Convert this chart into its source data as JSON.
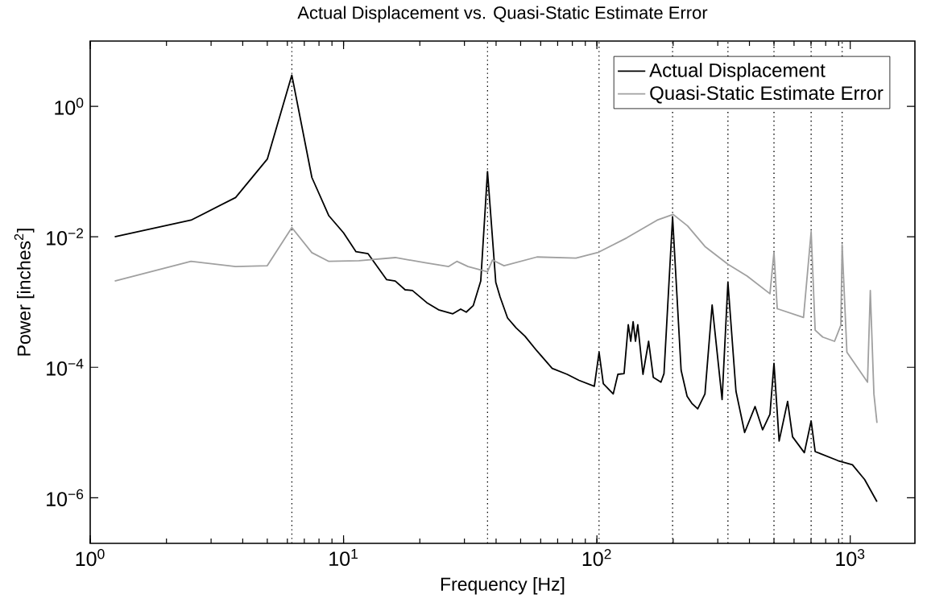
{
  "chart_data": {
    "type": "line",
    "title": "Actual Displacement vs. Quasi-Static Estimate Error",
    "xlabel": "Frequency [Hz]",
    "ylabel": "Power [inches$^{2}$]",
    "log": "xy",
    "legend": "top right",
    "marker": "none",
    "line_style": "solid",
    "xlim": [
      1,
      1800
    ],
    "ylim": [
      2e-07,
      10
    ],
    "xticks": [
      {
        "value": 1,
        "label": "10$^{0}$"
      },
      {
        "value": 10,
        "label": "10$^{1}$"
      },
      {
        "value": 100,
        "label": "10$^{2}$"
      },
      {
        "value": 1000,
        "label": "10$^{3}$"
      }
    ],
    "yticks": [
      {
        "value": 1e-06,
        "label": "10$^{−6}$"
      },
      {
        "value": 0.0001,
        "label": "10$^{−4}$"
      },
      {
        "value": 0.01,
        "label": "10$^{−2}$"
      },
      {
        "value": 1,
        "label": "10$^{0}$"
      }
    ],
    "ref_lines": [
      {
        "axis": "x",
        "value": 6.25,
        "color": "#000000",
        "line_style": "dotted"
      },
      {
        "axis": "x",
        "value": 37,
        "color": "#000000",
        "line_style": "dotted"
      },
      {
        "axis": "x",
        "value": 102,
        "color": "#000000",
        "line_style": "dotted"
      },
      {
        "axis": "x",
        "value": 199,
        "color": "#000000",
        "line_style": "dotted"
      },
      {
        "axis": "x",
        "value": 329,
        "color": "#000000",
        "line_style": "dotted"
      },
      {
        "axis": "x",
        "value": 500,
        "color": "#000000",
        "line_style": "dotted"
      },
      {
        "axis": "x",
        "value": 701,
        "color": "#000000",
        "line_style": "dotted"
      },
      {
        "axis": "x",
        "value": 929,
        "color": "#000000",
        "line_style": "dotted"
      }
    ],
    "series": [
      {
        "name": "Actual Displacement",
        "color": "#000000",
        "x": [
          1.25,
          2.5,
          3.75,
          5,
          6.25,
          7.5,
          8.75,
          10,
          11.2,
          12.5,
          14.8,
          16,
          17.5,
          18.7,
          21.3,
          23.7,
          27,
          29,
          30.5,
          32.5,
          34.8,
          37,
          39.9,
          41.5,
          44.4,
          48,
          52,
          58,
          66.6,
          76.3,
          85,
          97.7,
          102,
          106,
          116,
          121,
          128,
          133,
          136,
          139,
          142,
          145,
          152,
          160,
          167,
          179,
          184,
          199,
          215,
          227,
          237,
          250,
          267,
          285,
          312,
          329,
          354,
          383,
          421,
          451,
          482,
          500,
          524,
          566,
          592,
          659,
          701,
          727,
          895,
          1020,
          1140,
          1275
        ],
        "values": [
          0.01,
          0.018,
          0.04,
          0.155,
          3.0,
          0.081,
          0.021,
          0.0115,
          0.0059,
          0.0055,
          0.0022,
          0.0021,
          0.00154,
          0.0015,
          0.00098,
          0.00076,
          0.00066,
          0.00078,
          0.0007,
          0.00088,
          0.0021,
          0.1,
          0.002,
          0.00119,
          0.00057,
          0.0004,
          0.0003,
          0.000178,
          9.6e-05,
          7.8e-05,
          6.3e-05,
          5.1e-05,
          0.00017,
          5.6e-05,
          3.9e-05,
          7.8e-05,
          8e-05,
          0.00045,
          0.00025,
          0.0005,
          0.00025,
          0.00045,
          7.8e-05,
          0.00025,
          7e-05,
          5.9e-05,
          8e-05,
          0.02,
          9e-05,
          3.6e-05,
          2.8e-05,
          2.3e-05,
          3.9e-05,
          0.0009,
          3.2e-05,
          0.002,
          4.3e-05,
          1e-05,
          2.5e-05,
          1.1e-05,
          1.9e-05,
          0.000115,
          7.4e-06,
          3e-05,
          8.6e-06,
          4.9e-06,
          1.5e-05,
          5.1e-06,
          3.7e-06,
          3.2e-06,
          1.9e-06,
          8.7e-07
        ]
      },
      {
        "name": "Quasi-Static Estimate Error",
        "color": "#a0a0a0",
        "x": [
          1.25,
          2.5,
          3.75,
          5,
          6.25,
          7.5,
          8.75,
          11.5,
          16,
          21,
          26,
          28,
          31,
          37,
          38.7,
          43,
          58,
          82.7,
          101.6,
          131,
          173,
          200,
          228,
          267,
          329,
          392,
          482,
          500,
          515,
          654,
          701,
          727,
          779,
          867,
          918,
          929,
          970,
          1170,
          1200,
          1240,
          1275
        ],
        "values": [
          0.0021,
          0.0042,
          0.0035,
          0.0036,
          0.0138,
          0.0057,
          0.0042,
          0.0043,
          0.0048,
          0.004,
          0.0035,
          0.0042,
          0.0035,
          0.0029,
          0.0044,
          0.0036,
          0.0049,
          0.0047,
          0.0058,
          0.0096,
          0.018,
          0.022,
          0.0147,
          0.0071,
          0.0038,
          0.0025,
          0.00134,
          0.0058,
          0.00079,
          0.00058,
          0.012,
          0.00037,
          0.00029,
          0.00025,
          0.00044,
          0.0075,
          0.00017,
          5.9e-05,
          0.0015,
          3.9e-05,
          1.4e-05
        ]
      }
    ]
  }
}
